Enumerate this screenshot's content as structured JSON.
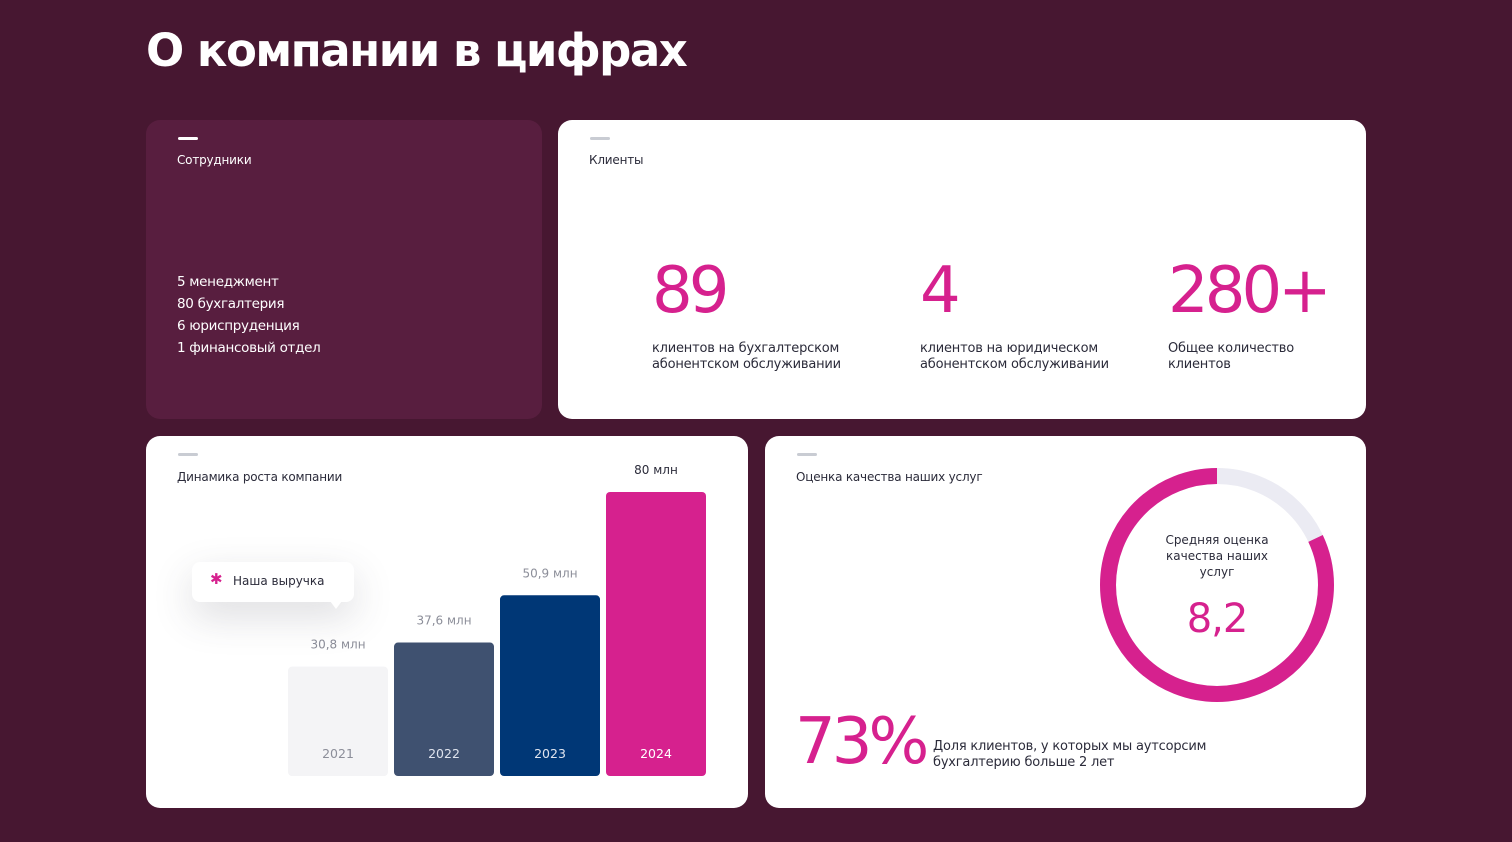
{
  "page": {
    "title": "О компании в цифрах"
  },
  "employees": {
    "label": "Сотрудники",
    "items": [
      "5 менеджмент",
      "80 бухгалтерия",
      "6 юриспруденция",
      "1 финансовый отдел"
    ]
  },
  "clients": {
    "label": "Клиенты",
    "stats": [
      {
        "value": "89",
        "label": "клиентов на бухгалтерском абонентском обслуживании"
      },
      {
        "value": "4",
        "label": "клиентов на юридическом абонентском обслуживании"
      },
      {
        "value": "280+",
        "label": "Общее количество клиентов"
      }
    ]
  },
  "growth": {
    "label": "Динамика роста компании",
    "tooltip": "Наша выручка",
    "tooltip_icon": "asterisk-icon"
  },
  "chart_data": {
    "type": "bar",
    "title": "Динамика роста компании",
    "categories": [
      "2021",
      "2022",
      "2023",
      "2024"
    ],
    "values": [
      30.8,
      37.6,
      50.9,
      80
    ],
    "value_labels": [
      "30,8 млн",
      "37,6 млн",
      "50,9 млн",
      "80 млн"
    ],
    "series": [
      {
        "name": "Наша выручка",
        "values": [
          30.8,
          37.6,
          50.9,
          80
        ]
      }
    ],
    "colors": [
      "#f4f4f6",
      "#3f5170",
      "#003776",
      "#d6218e"
    ],
    "ylim": [
      0,
      80
    ]
  },
  "rating": {
    "label": "Оценка качества наших услуг",
    "ring_caption": "Средняя оценка качества наших услуг",
    "score": "8,2",
    "score_value": 8.2,
    "score_max": 10,
    "percent": "73%",
    "percent_text": "Доля клиентов, у которых мы аутсорсим бухгалтерию больше 2 лет"
  },
  "colors": {
    "background": "#471731",
    "accent": "#d6218e",
    "card_dark": "#581e3f",
    "ring_track": "#ebebf3"
  }
}
